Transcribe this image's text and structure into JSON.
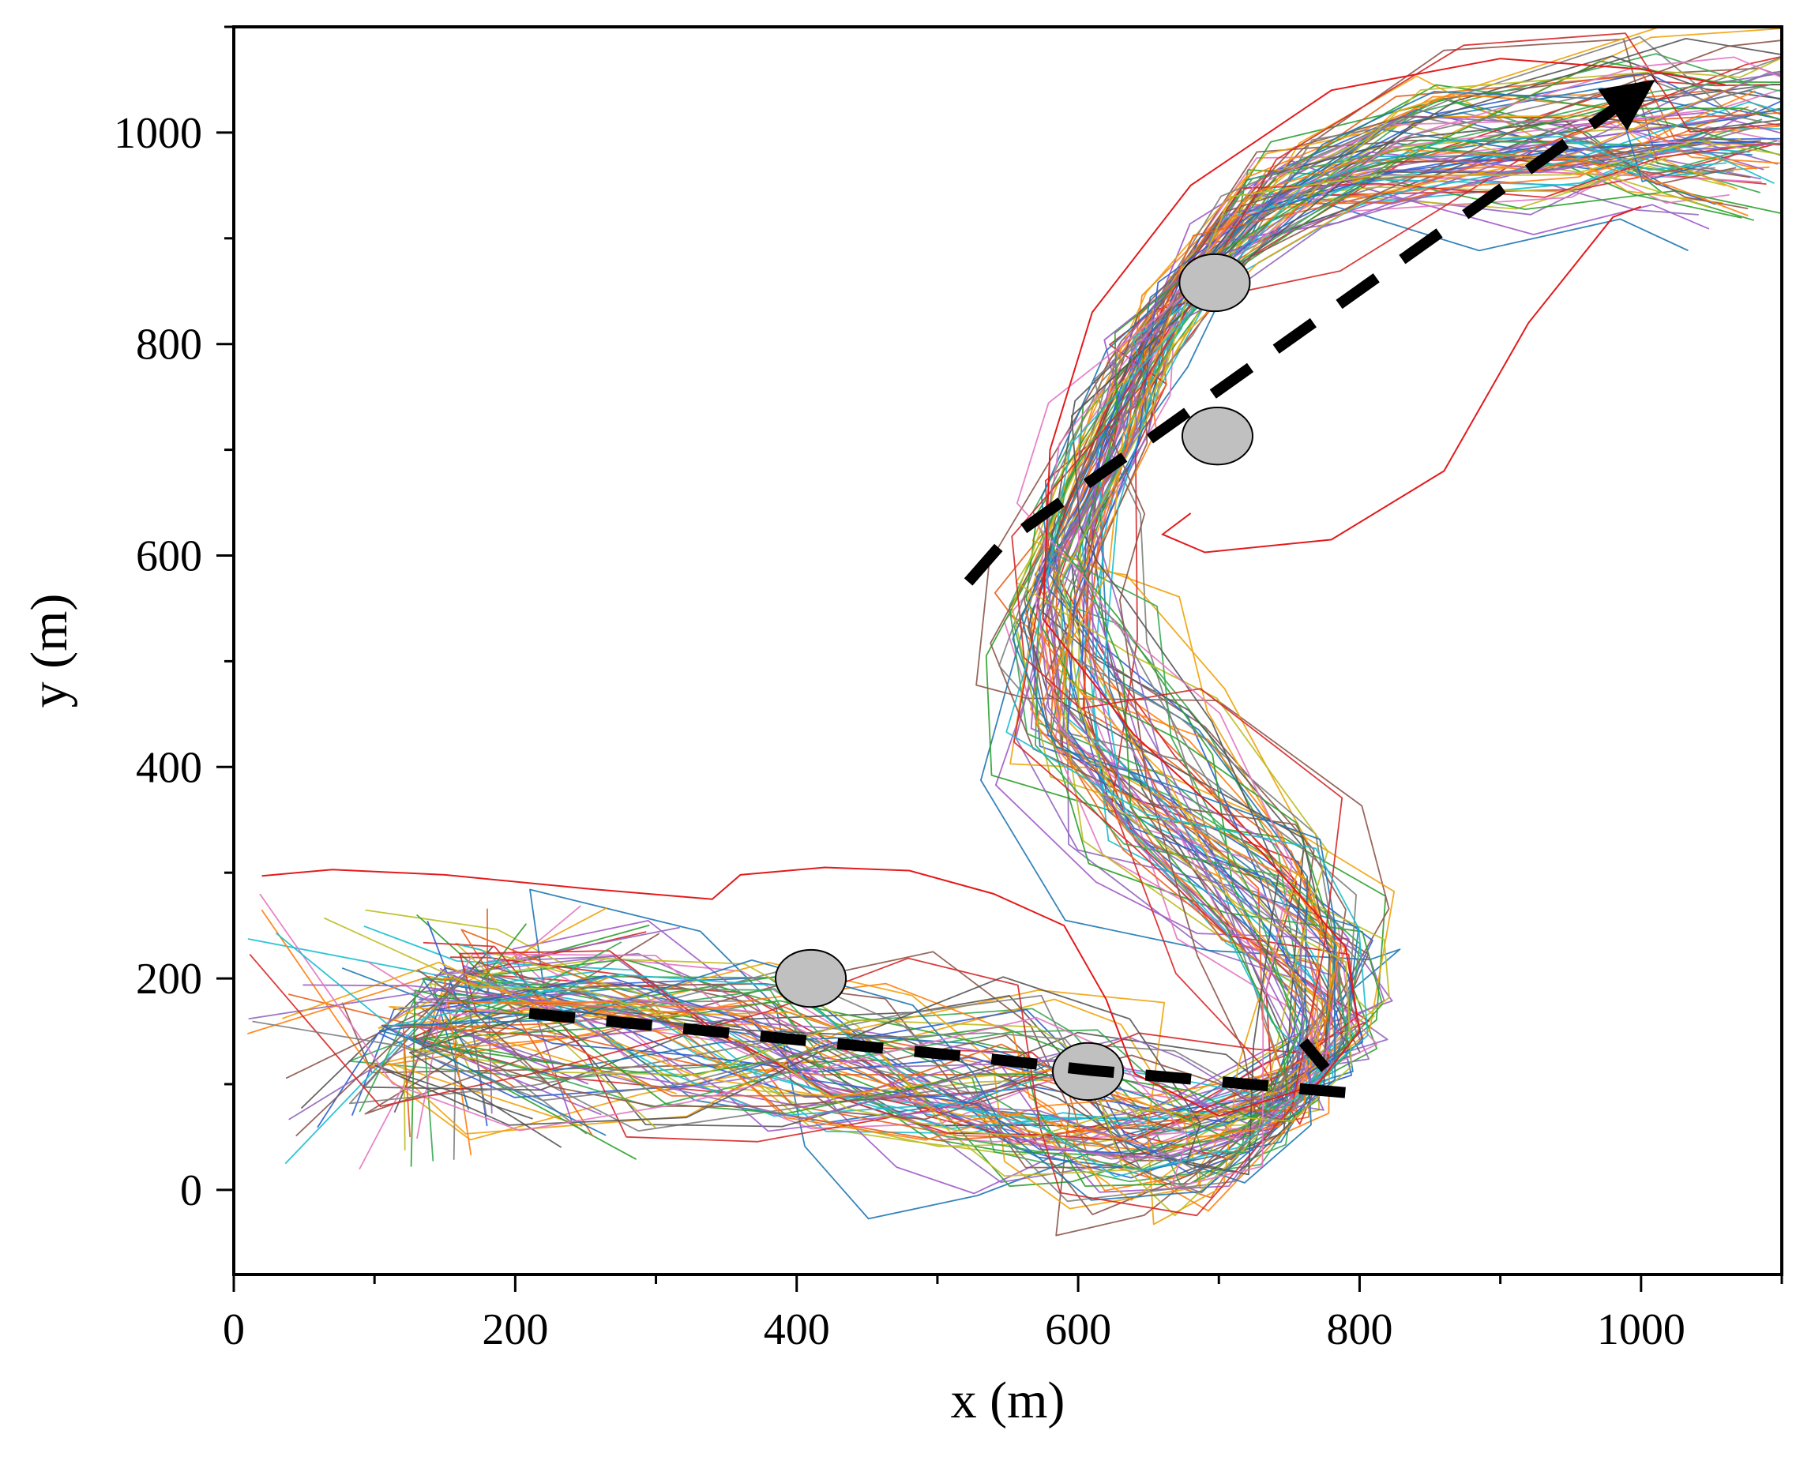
{
  "chart_data": {
    "type": "line",
    "title": "",
    "xlabel": "x (m)",
    "ylabel": "y (m)",
    "xlim": [
      0,
      1100
    ],
    "ylim": [
      -80,
      1100
    ],
    "x_ticks": [
      0,
      200,
      400,
      600,
      800,
      1000
    ],
    "y_ticks": [
      0,
      200,
      400,
      600,
      800,
      1000
    ],
    "x_minor_step": 100,
    "y_minor_step": 100,
    "grid": false,
    "legend": "none",
    "obstacles": [
      {
        "x": 410,
        "y": 200,
        "rx": 25,
        "ry": 27
      },
      {
        "x": 607,
        "y": 112,
        "rx": 25,
        "ry": 27
      },
      {
        "x": 697,
        "y": 858,
        "rx": 25,
        "ry": 27
      },
      {
        "x": 699,
        "y": 713,
        "rx": 25,
        "ry": 27
      }
    ],
    "obstacle_color": "#c0c0c0",
    "planned_route": [
      [
        210,
        167
      ],
      [
        530,
        125
      ],
      [
        610,
        113
      ],
      [
        790,
        92
      ],
      [
        760,
        140
      ],
      [
        522,
        575
      ],
      [
        545,
        610
      ],
      [
        1010,
        1050
      ]
    ],
    "route_color": "#000000",
    "trajectory_colors": [
      "#1f77b4",
      "#ff7f0e",
      "#2ca02c",
      "#d62728",
      "#9467bd",
      "#8c564b",
      "#e377c2",
      "#7f7f7f",
      "#bcbd22",
      "#17becf",
      "#2f5fd0",
      "#e8601c",
      "#39a852",
      "#f0a20a",
      "#a05ac8",
      "#555555"
    ],
    "trajectory_count": 90,
    "highlight_trajectory": {
      "color": "#e31a1c",
      "points": [
        [
          20,
          297
        ],
        [
          70,
          303
        ],
        [
          150,
          298
        ],
        [
          250,
          285
        ],
        [
          340,
          275
        ],
        [
          360,
          298
        ],
        [
          420,
          305
        ],
        [
          480,
          302
        ],
        [
          540,
          280
        ],
        [
          590,
          250
        ],
        [
          620,
          180
        ],
        [
          640,
          110
        ],
        [
          700,
          70
        ],
        [
          770,
          100
        ],
        [
          800,
          150
        ],
        [
          790,
          230
        ],
        [
          730,
          320
        ],
        [
          640,
          430
        ],
        [
          575,
          540
        ],
        [
          580,
          700
        ],
        [
          610,
          830
        ],
        [
          680,
          950
        ],
        [
          780,
          1040
        ],
        [
          900,
          1070
        ],
        [
          1000,
          1060
        ],
        [
          1060,
          1045
        ]
      ]
    },
    "outlier_trajectory": {
      "color": "#e31a1c",
      "points": [
        [
          680,
          640
        ],
        [
          660,
          620
        ],
        [
          690,
          603
        ],
        [
          780,
          615
        ],
        [
          860,
          680
        ],
        [
          920,
          820
        ],
        [
          980,
          920
        ],
        [
          1000,
          930
        ]
      ]
    },
    "trajectory_envelope": [
      [
        40,
        175
      ],
      [
        140,
        175
      ],
      [
        250,
        160
      ],
      [
        350,
        140
      ],
      [
        430,
        115
      ],
      [
        520,
        100
      ],
      [
        585,
        80
      ],
      [
        650,
        50
      ],
      [
        720,
        55
      ],
      [
        770,
        110
      ],
      [
        770,
        200
      ],
      [
        730,
        280
      ],
      [
        650,
        380
      ],
      [
        595,
        470
      ],
      [
        585,
        580
      ],
      [
        615,
        700
      ],
      [
        650,
        810
      ],
      [
        720,
        920
      ],
      [
        820,
        980
      ],
      [
        960,
        1000
      ],
      [
        1040,
        1000
      ]
    ]
  }
}
